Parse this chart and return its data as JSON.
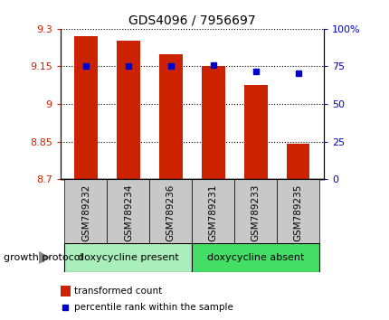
{
  "title": "GDS4096 / 7956697",
  "samples": [
    "GSM789232",
    "GSM789234",
    "GSM789236",
    "GSM789231",
    "GSM789233",
    "GSM789235"
  ],
  "bar_values": [
    9.272,
    9.252,
    9.2,
    9.152,
    9.075,
    8.843
  ],
  "percentile_values": [
    75.5,
    75.0,
    75.0,
    76.0,
    71.5,
    70.5
  ],
  "bar_bottom": 8.7,
  "ylim_left": [
    8.7,
    9.3
  ],
  "ylim_right": [
    0,
    100
  ],
  "yticks_left": [
    8.7,
    8.85,
    9.0,
    9.15,
    9.3
  ],
  "yticks_right": [
    0,
    25,
    50,
    75,
    100
  ],
  "bar_color": "#cc2200",
  "percentile_color": "#0000cc",
  "group1_label": "doxycycline present",
  "group2_label": "doxycycline absent",
  "group1_indices": [
    0,
    1,
    2
  ],
  "group2_indices": [
    3,
    4,
    5
  ],
  "group_box_color1": "#aaeebb",
  "group_box_color2": "#44dd66",
  "tick_label_area_color": "#c8c8c8",
  "legend_bar_label": "transformed count",
  "legend_percentile_label": "percentile rank within the sample",
  "growth_protocol_label": "growth protocol",
  "fig_width": 4.31,
  "fig_height": 3.54,
  "dpi": 100
}
